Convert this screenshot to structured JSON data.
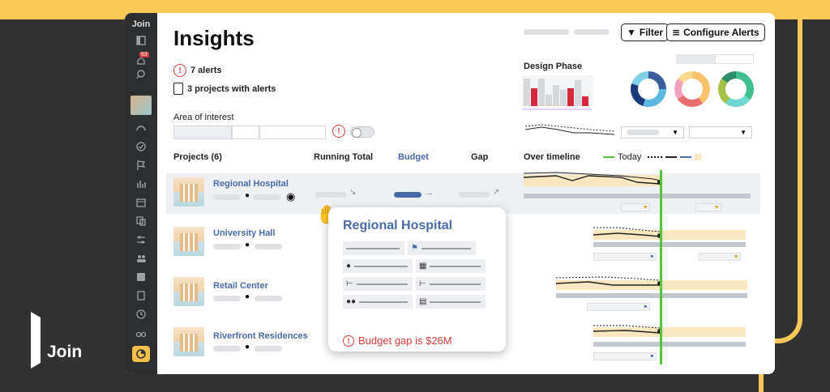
{
  "brand": {
    "name": "Join"
  },
  "colors": {
    "accent": "#f9c859",
    "link": "#4a6aa6",
    "alert": "#d83b3b",
    "today": "#54c43a"
  },
  "sidebar": {
    "logo": "Join",
    "notifications": "63",
    "icons": [
      "layout-icon",
      "bell-icon",
      "search-icon",
      "gauge-icon",
      "check-circle-icon",
      "flag-icon",
      "bar-chart-icon",
      "calendar-icon",
      "swap-icon",
      "sliders-icon",
      "people-icon",
      "square-icon",
      "book-icon",
      "history-icon",
      "binoculars-icon",
      "insights-icon"
    ]
  },
  "header": {
    "title": "Insights",
    "filter": "Filter",
    "configure": "Configure Alerts"
  },
  "summary": {
    "alerts": "7 alerts",
    "projects": "3 projects with alerts",
    "area": "Area of interest"
  },
  "design_phase": {
    "label": "Design Phase"
  },
  "table": {
    "projects": "Projects (6)",
    "running": "Running Total",
    "budget": "Budget",
    "gap": "Gap",
    "timeline": "Over timeline",
    "today": "Today"
  },
  "rows": [
    {
      "name": "Regional Hospital"
    },
    {
      "name": "University Hall"
    },
    {
      "name": "Retail Center"
    },
    {
      "name": "Riverfront Residences"
    }
  ],
  "popup": {
    "title": "Regional Hospital",
    "gap_message": "Budget gap is $26M"
  }
}
